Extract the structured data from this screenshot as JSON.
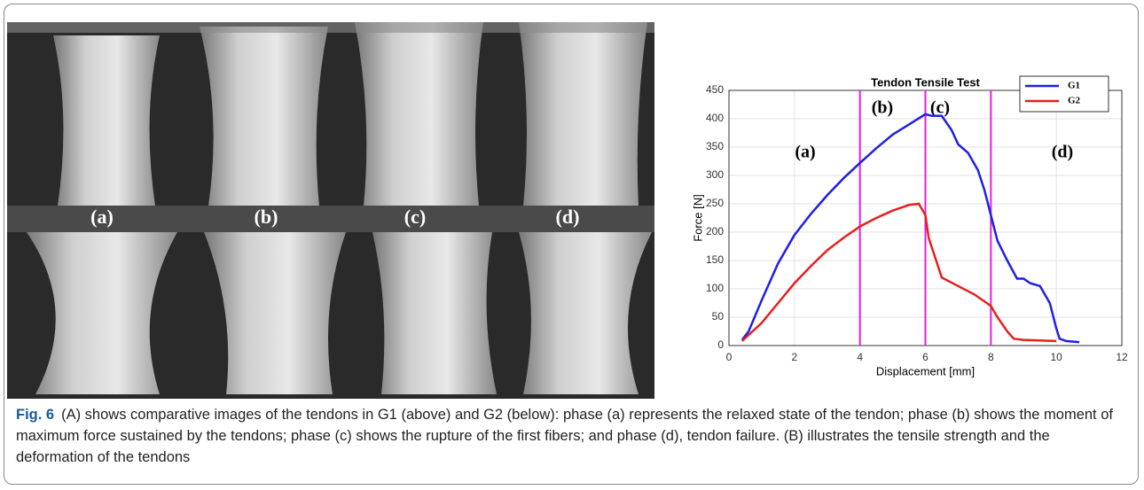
{
  "figure": {
    "photo_labels": [
      "(a)",
      "(b)",
      "(c)",
      "(d)"
    ],
    "chart_data": {
      "type": "line",
      "title": "Tendon Tensile Test",
      "x_label": "Displacement [mm]",
      "y_label": "Force [N]",
      "xlim": [
        0,
        12
      ],
      "ylim": [
        0,
        450
      ],
      "xticks": [
        0,
        2,
        4,
        6,
        8,
        10,
        12
      ],
      "yticks": [
        0,
        50,
        100,
        150,
        200,
        250,
        300,
        350,
        400,
        450
      ],
      "grid": true,
      "legend": "upper right",
      "phase_lines": {
        "values": [
          4,
          6,
          8
        ],
        "color": "#e020e0"
      },
      "annotations": [
        "(a)",
        "(b)",
        "(c)",
        "(d)"
      ],
      "series": [
        {
          "name": "G1",
          "color": "#1f1fe6",
          "x": [
            0.4,
            0.6,
            1,
            1.5,
            2,
            2.5,
            3,
            3.5,
            4,
            4.5,
            5,
            5.5,
            6,
            6.2,
            6.5,
            6.8,
            7,
            7.3,
            7.6,
            7.8,
            8,
            8.2,
            8.5,
            8.8,
            9,
            9.2,
            9.5,
            9.8,
            10,
            10.1,
            10.3,
            10.7
          ],
          "values": [
            10,
            25,
            80,
            145,
            195,
            232,
            265,
            295,
            322,
            348,
            372,
            390,
            408,
            405,
            405,
            380,
            355,
            340,
            310,
            275,
            230,
            185,
            150,
            118,
            118,
            110,
            105,
            75,
            30,
            12,
            8,
            6
          ]
        },
        {
          "name": "G2",
          "color": "#e61f1f",
          "x": [
            0.4,
            1,
            1.5,
            2,
            2.5,
            3,
            3.5,
            4,
            4.5,
            5,
            5.5,
            5.8,
            6,
            6.1,
            6.5,
            7,
            7.5,
            8,
            8.2,
            8.5,
            8.7,
            9,
            9.5,
            10
          ],
          "values": [
            8,
            40,
            75,
            110,
            140,
            168,
            190,
            210,
            225,
            238,
            248,
            250,
            230,
            190,
            120,
            105,
            90,
            70,
            50,
            25,
            12,
            10,
            9,
            8
          ]
        }
      ]
    },
    "caption": {
      "label": "Fig. 6",
      "text": "(A) shows comparative images of the tendons in G1 (above) and G2 (below): phase (a) represents the relaxed state of the tendon; phase (b) shows the moment of maximum force sustained by the tendons; phase (c) shows the rupture of the first fibers; and phase (d), tendon failure. (B) illustrates the tensile strength and the deformation of the tendons"
    }
  }
}
